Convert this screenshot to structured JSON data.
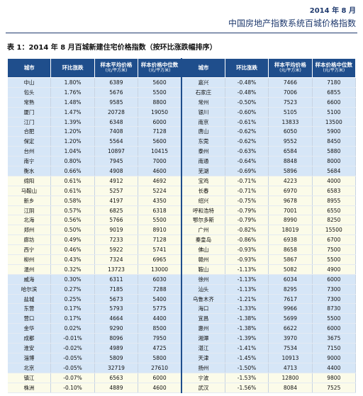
{
  "header": {
    "date": "2014 年 8 月",
    "title": "中国房地产指数系统百城价格指数"
  },
  "table": {
    "caption": "表 1：2014 年 8 月百城新建住宅价格指数（按环比涨跌幅排序）",
    "columns": [
      {
        "label": "城市"
      },
      {
        "label": "环比涨跌"
      },
      {
        "label": "样本平均价格",
        "unit": "(元/平方米)"
      },
      {
        "label": "样本价格中位数",
        "unit": "(元/平方米)"
      },
      {
        "label": "城市"
      },
      {
        "label": "环比涨跌"
      },
      {
        "label": "样本平均价格",
        "unit": "(元/平方米)"
      },
      {
        "label": "样本价格中位数",
        "unit": "(元/平方米)"
      }
    ],
    "rows": [
      [
        "中山",
        "1.80%",
        "6389",
        "5600",
        "嘉兴",
        "-0.48%",
        "7466",
        "7180"
      ],
      [
        "包头",
        "1.76%",
        "5676",
        "5500",
        "石家庄",
        "-0.48%",
        "7006",
        "6855"
      ],
      [
        "常熟",
        "1.48%",
        "9585",
        "8800",
        "常州",
        "-0.50%",
        "7523",
        "6600"
      ],
      [
        "厦门",
        "1.47%",
        "20728",
        "19050",
        "银川",
        "-0.60%",
        "5105",
        "5100"
      ],
      [
        "江门",
        "1.39%",
        "6348",
        "6000",
        "南京",
        "-0.61%",
        "13833",
        "13500"
      ],
      [
        "合肥",
        "1.20%",
        "7408",
        "7128",
        "唐山",
        "-0.62%",
        "6050",
        "5900"
      ],
      [
        "保定",
        "1.20%",
        "5564",
        "5600",
        "东莞",
        "-0.62%",
        "9552",
        "8450"
      ],
      [
        "台州",
        "1.04%",
        "10897",
        "10415",
        "泰州",
        "-0.63%",
        "6584",
        "5880"
      ],
      [
        "南宁",
        "0.80%",
        "7945",
        "7000",
        "南通",
        "-0.64%",
        "8848",
        "8000"
      ],
      [
        "衡水",
        "0.66%",
        "4908",
        "4600",
        "芜湖",
        "-0.69%",
        "5896",
        "5684"
      ],
      [
        "绵阳",
        "0.61%",
        "4912",
        "4692",
        "宝鸡",
        "-0.71%",
        "4223",
        "4000"
      ],
      [
        "马鞍山",
        "0.61%",
        "5257",
        "5224",
        "长春",
        "-0.71%",
        "6970",
        "6583"
      ],
      [
        "新乡",
        "0.58%",
        "4197",
        "4350",
        "绍兴",
        "-0.75%",
        "9678",
        "8955"
      ],
      [
        "江阴",
        "0.57%",
        "6825",
        "6318",
        "呼和浩特",
        "-0.79%",
        "7001",
        "6550"
      ],
      [
        "北海",
        "0.56%",
        "5766",
        "5500",
        "鄂尔多斯",
        "-0.79%",
        "8990",
        "8250"
      ],
      [
        "郑州",
        "0.50%",
        "9019",
        "8910",
        "广州",
        "-0.82%",
        "18019",
        "15500"
      ],
      [
        "廊坊",
        "0.49%",
        "7233",
        "7128",
        "秦皇岛",
        "-0.86%",
        "6938",
        "6700"
      ],
      [
        "西宁",
        "0.46%",
        "5922",
        "5741",
        "佛山",
        "-0.93%",
        "8658",
        "7500"
      ],
      [
        "柳州",
        "0.43%",
        "7324",
        "6965",
        "赣州",
        "-0.93%",
        "5867",
        "5500"
      ],
      [
        "温州",
        "0.32%",
        "13723",
        "13000",
        "鞍山",
        "-1.13%",
        "5082",
        "4900"
      ],
      [
        "威海",
        "0.30%",
        "6311",
        "6030",
        "徐州",
        "-1.13%",
        "6034",
        "6000"
      ],
      [
        "哈尔滨",
        "0.27%",
        "7185",
        "7288",
        "汕头",
        "-1.13%",
        "8295",
        "7300"
      ],
      [
        "盐城",
        "0.25%",
        "5673",
        "5400",
        "乌鲁木齐",
        "-1.21%",
        "7617",
        "7300"
      ],
      [
        "东营",
        "0.17%",
        "5793",
        "5775",
        "海口",
        "-1.33%",
        "9966",
        "8730"
      ],
      [
        "营口",
        "0.17%",
        "4664",
        "4400",
        "宜昌",
        "-1.38%",
        "5699",
        "5500"
      ],
      [
        "金华",
        "0.02%",
        "9290",
        "8500",
        "惠州",
        "-1.38%",
        "6622",
        "6000"
      ],
      [
        "成都",
        "-0.01%",
        "8096",
        "7950",
        "湘潭",
        "-1.39%",
        "3970",
        "3675"
      ],
      [
        "淮安",
        "-0.02%",
        "4989",
        "4725",
        "湛江",
        "-1.41%",
        "7534",
        "7150"
      ],
      [
        "淄博",
        "-0.05%",
        "5809",
        "5800",
        "天津",
        "-1.45%",
        "10913",
        "9000"
      ],
      [
        "北京",
        "-0.05%",
        "32719",
        "27610",
        "扬州",
        "-1.50%",
        "4713",
        "4400"
      ],
      [
        "镇江",
        "-0.07%",
        "6563",
        "6000",
        "宁波",
        "-1.53%",
        "12800",
        "9800"
      ],
      [
        "株洲",
        "-0.10%",
        "4889",
        "4600",
        "武汉",
        "-1.56%",
        "8084",
        "7525"
      ]
    ]
  }
}
